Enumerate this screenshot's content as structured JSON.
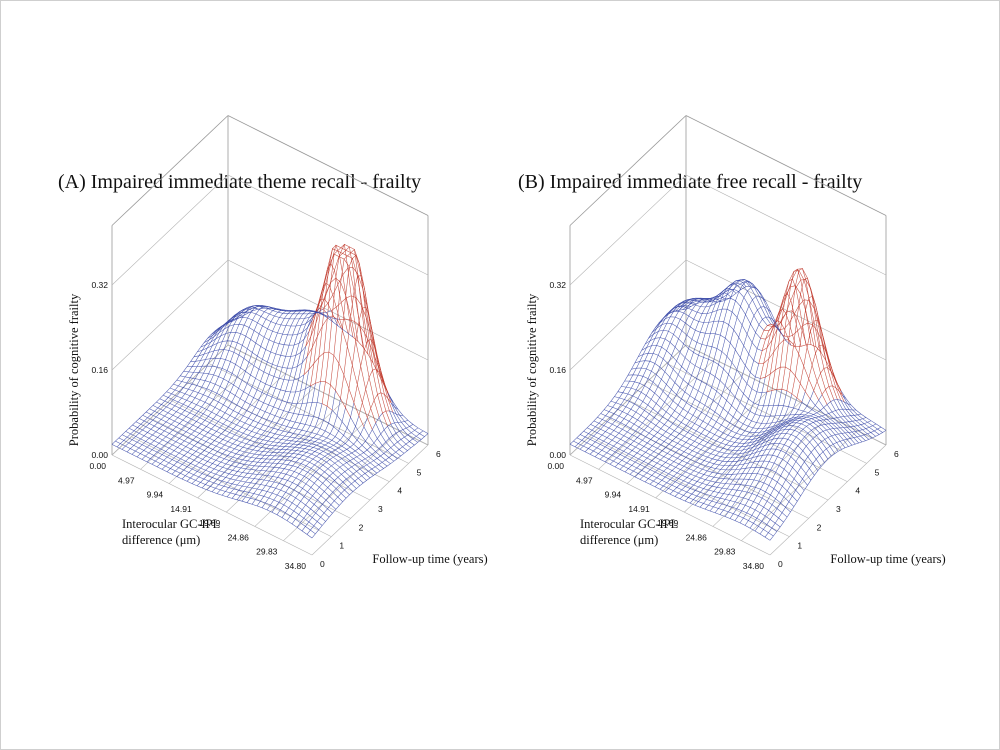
{
  "colors": {
    "base_mesh": "#3b4aa8",
    "peak_mesh": "#c0392b",
    "box": "#9a9a9a",
    "background": "#ffffff"
  },
  "chart_data": [
    {
      "type": "surface3d",
      "title": "(A) Impaired immediate theme recall - frailty",
      "zlabel": "Probability of cognitive frailty",
      "xlabel_line1": "Interocular GC-IPL",
      "xlabel_line2": "difference (μm)",
      "ylabel": "Follow-up time (years)",
      "z_ticks": [
        "0.00",
        "0.16",
        "0.32"
      ],
      "x_ticks": [
        "0.00",
        "4.97",
        "9.94",
        "14.91",
        "19.89",
        "24.86",
        "29.83",
        "34.80"
      ],
      "y_ticks": [
        "0",
        "1",
        "2",
        "3",
        "4",
        "5",
        "6"
      ],
      "zlim": [
        0,
        0.32
      ],
      "xlim": [
        0,
        34.8
      ],
      "ylim": [
        0,
        6
      ],
      "surface": {
        "baseline": 0.02,
        "peaks": [
          {
            "x": 24.0,
            "y": 5.0,
            "height": 0.33,
            "sx": 3.2,
            "sy": 0.55,
            "highlight": true
          },
          {
            "x": 16.0,
            "y": 5.6,
            "height": 0.13,
            "sx": 5.0,
            "sy": 1.0,
            "highlight": false
          },
          {
            "x": 6.0,
            "y": 5.2,
            "height": 0.09,
            "sx": 4.0,
            "sy": 1.0,
            "highlight": false
          },
          {
            "x": 28.0,
            "y": 2.0,
            "height": 0.05,
            "sx": 6.0,
            "sy": 1.6,
            "highlight": false
          }
        ]
      }
    },
    {
      "type": "surface3d",
      "title": "(B) Impaired immediate free recall - frailty",
      "zlabel": "Probability of cognitive frailty",
      "xlabel_line1": "Interocular GC-IPL",
      "xlabel_line2": "difference (μm)",
      "ylabel": "Follow-up time (years)",
      "z_ticks": [
        "0.00",
        "0.16",
        "0.32"
      ],
      "x_ticks": [
        "0.00",
        "4.97",
        "9.94",
        "14.91",
        "19.89",
        "24.86",
        "29.83",
        "34.80"
      ],
      "y_ticks": [
        "0",
        "1",
        "2",
        "3",
        "4",
        "5",
        "6"
      ],
      "zlim": [
        0,
        0.32
      ],
      "xlim": [
        0,
        34.8
      ],
      "ylim": [
        0,
        6
      ],
      "surface": {
        "baseline": 0.02,
        "peaks": [
          {
            "x": 22.5,
            "y": 5.2,
            "height": 0.26,
            "sx": 3.0,
            "sy": 0.55,
            "highlight": true
          },
          {
            "x": 12.0,
            "y": 5.4,
            "height": 0.18,
            "sx": 4.0,
            "sy": 1.0,
            "highlight": false
          },
          {
            "x": 3.0,
            "y": 4.8,
            "height": 0.1,
            "sx": 3.5,
            "sy": 1.3,
            "highlight": false
          },
          {
            "x": 30.0,
            "y": 3.0,
            "height": 0.09,
            "sx": 5.0,
            "sy": 1.5,
            "highlight": false
          }
        ]
      }
    }
  ]
}
